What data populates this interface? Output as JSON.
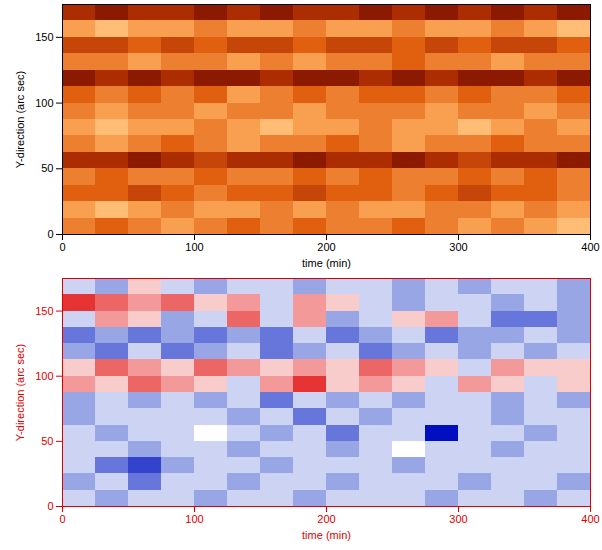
{
  "chart_data": [
    {
      "type": "heatmap",
      "xlabel": "time (min)",
      "ylabel": "Y-direction (arc sec)",
      "xlim": [
        0,
        400
      ],
      "xticks": [
        0,
        100,
        200,
        300,
        400
      ],
      "ylim": [
        0,
        175
      ],
      "yticks": [
        0,
        50,
        100,
        150
      ],
      "x_bins": [
        0,
        25,
        50,
        75,
        100,
        125,
        150,
        175,
        200,
        225,
        250,
        275,
        300,
        325,
        350,
        375,
        400
      ],
      "y_bins": [
        0,
        12.5,
        25,
        37.5,
        50,
        62.5,
        75,
        87.5,
        100,
        112.5,
        125,
        137.5,
        150,
        162.5,
        175
      ],
      "zlim": [
        0,
        10
      ],
      "colors": [
        "#3a0000",
        "#a02000",
        "#e06010",
        "#ffb060",
        "#fff0d0"
      ],
      "cells": [
        [
          6,
          5,
          6,
          7,
          6,
          5,
          6,
          5,
          6,
          6,
          5,
          6,
          7,
          6,
          7,
          8
        ],
        [
          7,
          8,
          7,
          6,
          7,
          7,
          6,
          7,
          6,
          7,
          7,
          6,
          6,
          7,
          6,
          7
        ],
        [
          5,
          5,
          4,
          5,
          6,
          5,
          5,
          4,
          5,
          5,
          6,
          5,
          4,
          5,
          5,
          6
        ],
        [
          6,
          5,
          6,
          6,
          5,
          6,
          6,
          5,
          6,
          5,
          6,
          6,
          5,
          6,
          5,
          6
        ],
        [
          3,
          3,
          2,
          3,
          4,
          3,
          3,
          2,
          3,
          3,
          2,
          3,
          4,
          3,
          3,
          2
        ],
        [
          6,
          7,
          6,
          5,
          6,
          7,
          6,
          6,
          5,
          6,
          7,
          6,
          6,
          5,
          6,
          6
        ],
        [
          7,
          8,
          7,
          7,
          6,
          7,
          8,
          7,
          7,
          6,
          7,
          7,
          8,
          7,
          6,
          7
        ],
        [
          6,
          7,
          6,
          6,
          7,
          6,
          6,
          7,
          6,
          6,
          6,
          7,
          6,
          6,
          7,
          6
        ],
        [
          5,
          6,
          5,
          6,
          5,
          7,
          6,
          5,
          6,
          5,
          5,
          6,
          5,
          6,
          6,
          5
        ],
        [
          2,
          3,
          2,
          3,
          2,
          2,
          3,
          2,
          2,
          3,
          2,
          3,
          2,
          2,
          3,
          2
        ],
        [
          6,
          6,
          7,
          6,
          6,
          7,
          6,
          7,
          6,
          6,
          5,
          6,
          6,
          7,
          6,
          6
        ],
        [
          4,
          4,
          5,
          4,
          5,
          4,
          4,
          5,
          4,
          4,
          5,
          4,
          5,
          4,
          4,
          5
        ],
        [
          7,
          8,
          7,
          7,
          6,
          7,
          7,
          6,
          7,
          7,
          6,
          7,
          7,
          6,
          7,
          8
        ],
        [
          3,
          2,
          3,
          3,
          2,
          3,
          2,
          3,
          3,
          2,
          3,
          2,
          3,
          2,
          3,
          2
        ]
      ]
    },
    {
      "type": "heatmap",
      "xlabel": "time (min)",
      "ylabel": "Y-direction (arc sec)",
      "xlim": [
        0,
        400
      ],
      "xticks": [
        0,
        100,
        200,
        300,
        400
      ],
      "ylim": [
        0,
        175
      ],
      "yticks": [
        0,
        50,
        100,
        150
      ],
      "x_bins": [
        0,
        25,
        50,
        75,
        100,
        125,
        150,
        175,
        200,
        225,
        250,
        275,
        300,
        325,
        350,
        375,
        400
      ],
      "y_bins": [
        0,
        12.5,
        25,
        37.5,
        50,
        62.5,
        75,
        87.5,
        100,
        112.5,
        125,
        137.5,
        150,
        162.5,
        175
      ],
      "zlim": [
        -5,
        5
      ],
      "colors": [
        "#0010c0",
        "#8090e0",
        "#ffffff",
        "#f08080",
        "#e00000"
      ],
      "cells": [
        [
          -1,
          -2,
          -1,
          -1,
          -2,
          -1,
          -1,
          -2,
          -1,
          -1,
          -1,
          -2,
          -1,
          -1,
          -2,
          -1
        ],
        [
          -2,
          -1,
          -3,
          -1,
          -1,
          -2,
          -1,
          -1,
          -2,
          -1,
          -1,
          -1,
          -2,
          -1,
          -1,
          -2
        ],
        [
          -1,
          -3,
          -4,
          -2,
          -1,
          -1,
          -2,
          -1,
          -1,
          -1,
          -2,
          -1,
          -1,
          -1,
          -1,
          -1
        ],
        [
          -1,
          -1,
          -2,
          -1,
          -1,
          -2,
          -1,
          -1,
          -2,
          -1,
          0,
          -1,
          -1,
          -2,
          -1,
          -1
        ],
        [
          -1,
          -2,
          -1,
          -1,
          0,
          -1,
          -2,
          -1,
          -3,
          -1,
          -1,
          -5,
          -1,
          -1,
          -2,
          -1
        ],
        [
          -2,
          -1,
          -1,
          -1,
          -1,
          -2,
          -1,
          -3,
          -1,
          -2,
          -1,
          -1,
          -1,
          -2,
          -1,
          -1
        ],
        [
          -2,
          -1,
          -2,
          -1,
          -2,
          -1,
          -3,
          -1,
          -2,
          -1,
          -2,
          -1,
          -1,
          -2,
          -1,
          -2
        ],
        [
          2,
          1,
          3,
          2,
          1,
          -1,
          2,
          4,
          1,
          2,
          1,
          -1,
          2,
          1,
          -1,
          1
        ],
        [
          1,
          3,
          2,
          1,
          3,
          2,
          1,
          2,
          1,
          3,
          2,
          1,
          -1,
          2,
          1,
          1
        ],
        [
          -2,
          -3,
          -1,
          -3,
          -2,
          -1,
          -3,
          -2,
          -1,
          -3,
          -2,
          -1,
          -2,
          -1,
          -2,
          -1
        ],
        [
          -3,
          -2,
          -3,
          -2,
          -3,
          -2,
          -3,
          -1,
          -3,
          -2,
          -1,
          -3,
          -2,
          -2,
          -1,
          -2
        ],
        [
          -1,
          2,
          1,
          -2,
          -1,
          3,
          -1,
          2,
          -2,
          -1,
          1,
          2,
          -1,
          -3,
          -3,
          -2
        ],
        [
          4,
          3,
          2,
          3,
          1,
          2,
          -1,
          2,
          1,
          -1,
          -2,
          -1,
          -1,
          -2,
          -1,
          -2
        ],
        [
          -1,
          -2,
          1,
          -1,
          -2,
          -1,
          -1,
          -2,
          -1,
          -1,
          -2,
          -1,
          -2,
          -1,
          -1,
          -2
        ]
      ]
    }
  ]
}
